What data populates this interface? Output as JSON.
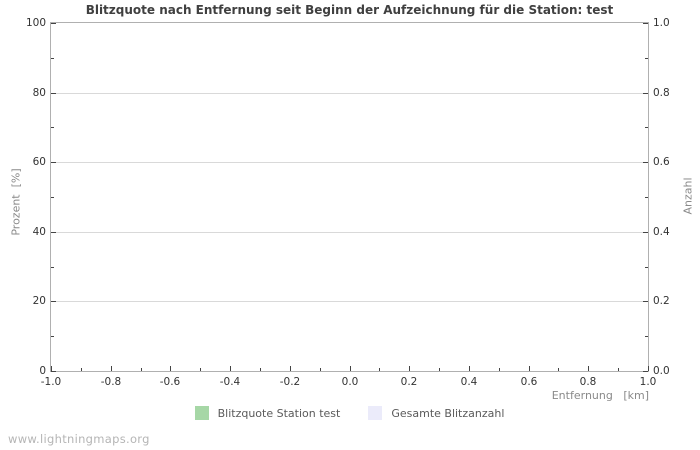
{
  "chart_data": {
    "type": "bar",
    "title": "Blitzquote nach Entfernung seit Beginn der Aufzeichnung für die Station: test",
    "xlabel": "Entfernung   [km]",
    "ylabel_left": "Prozent  [%]",
    "ylabel_right": "Anzahl",
    "x_axis": {
      "min": -1.0,
      "max": 1.0,
      "step_major": 0.2,
      "step_minor": 0.1,
      "decimals": 1,
      "tick_labels": [
        "-1.0",
        "-0.8",
        "-0.6",
        "-0.4",
        "-0.2",
        "0.0",
        "0.2",
        "0.4",
        "0.6",
        "0.8",
        "1.0"
      ]
    },
    "y_axis_left": {
      "min": 0,
      "max": 100,
      "step_major": 20,
      "step_minor": 10,
      "decimals": 0,
      "tick_labels": [
        "0",
        "20",
        "40",
        "60",
        "80",
        "100"
      ]
    },
    "y_axis_right": {
      "min": 0.0,
      "max": 1.0,
      "step_major": 0.2,
      "step_minor": 0.1,
      "decimals": 1,
      "tick_labels": [
        "0.0",
        "0.2",
        "0.4",
        "0.6",
        "0.8",
        "1.0"
      ]
    },
    "grid": "horizontal-major-only",
    "legend_position": "bottom-center",
    "series": [
      {
        "name": "Blitzquote Station test",
        "color": "#a6d7a6",
        "values": []
      },
      {
        "name": "Gesamte Blitzanzahl",
        "color": "#ebebfa",
        "values": []
      }
    ]
  },
  "footer": {
    "watermark": "www.lightningmaps.org"
  },
  "colors": {
    "plot_border": "#b0b0b0",
    "gridline": "#d9d9d9",
    "tick_mark": "#444444",
    "tick_text": "#333333",
    "title_text": "#404040",
    "axis_label_text": "#8a8a8a",
    "legend_text": "#5a5a5a",
    "watermark_text": "#b5b5b5",
    "series_green": "#a6d7a6",
    "series_lavender": "#ebebfa"
  }
}
